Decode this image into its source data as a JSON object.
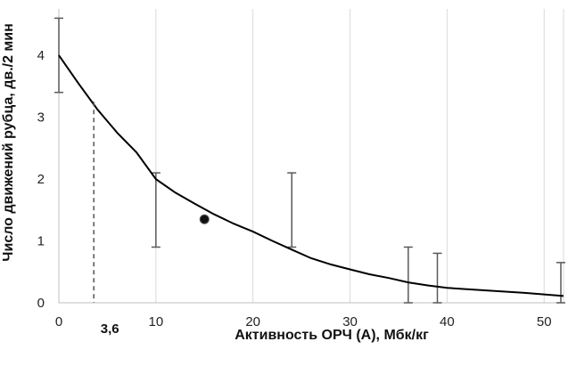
{
  "chart_data": {
    "type": "line",
    "xlabel": "Активность ОРЧ (А), Мбк/кг",
    "ylabel": "Число движений рубца, дв./2 мин",
    "xlim": [
      0,
      52
    ],
    "ylim": [
      0,
      4.75
    ],
    "x_ticks": [
      0,
      10,
      20,
      30,
      40,
      50
    ],
    "x_tick_labels": [
      "0",
      "10",
      "20",
      "30",
      "40",
      "50"
    ],
    "y_ticks": [
      0,
      1,
      2,
      3,
      4
    ],
    "y_tick_labels": [
      "0",
      "1",
      "2",
      "3",
      "4"
    ],
    "grid": "vertical",
    "fit_curve": {
      "x": [
        0,
        2,
        4,
        6,
        8,
        10,
        12,
        14,
        16,
        18,
        20,
        22,
        24,
        26,
        28,
        30,
        32,
        34,
        36,
        38,
        40,
        44,
        48,
        52
      ],
      "y": [
        4.0,
        3.55,
        3.12,
        2.75,
        2.43,
        2.0,
        1.78,
        1.6,
        1.43,
        1.28,
        1.15,
        1.0,
        0.86,
        0.72,
        0.62,
        0.54,
        0.46,
        0.4,
        0.33,
        0.28,
        0.24,
        0.2,
        0.16,
        0.11
      ]
    },
    "error_bars": [
      {
        "x": 0,
        "low": 3.4,
        "high": 4.6
      },
      {
        "x": 10,
        "low": 0.9,
        "high": 2.1
      },
      {
        "x": 24,
        "low": 0.9,
        "high": 2.1
      },
      {
        "x": 36,
        "low": 0.0,
        "high": 0.9
      },
      {
        "x": 39,
        "low": 0.0,
        "high": 0.8
      },
      {
        "x": 52,
        "low": 0.0,
        "high": 0.65
      }
    ],
    "points": [
      {
        "x": 15,
        "y": 1.35
      }
    ],
    "marker_line": {
      "x": 3.6,
      "y": 3.25
    },
    "marker_label": "3,6"
  }
}
